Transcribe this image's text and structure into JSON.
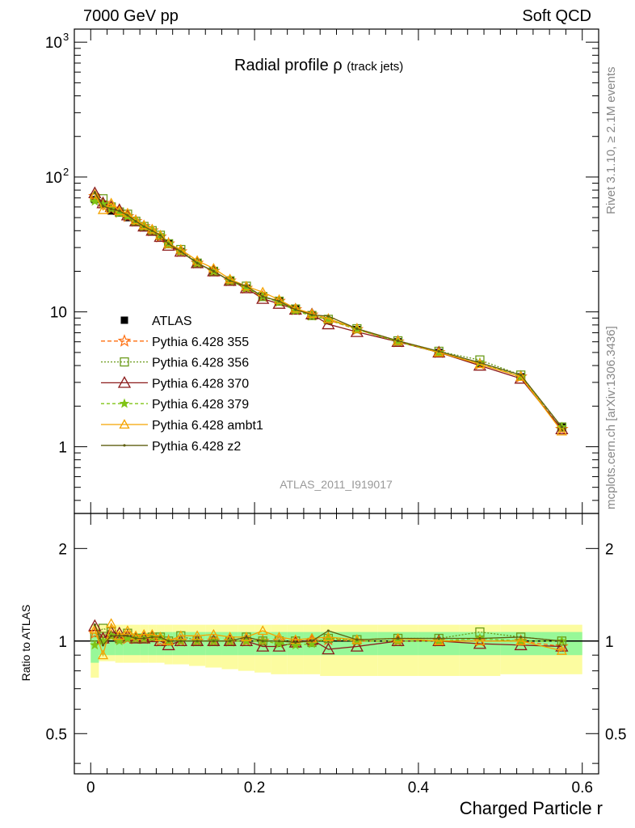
{
  "header": {
    "left": "7000 GeV pp",
    "right": "Soft QCD"
  },
  "side_labels": {
    "rivet": "Rivet 3.1.10, ≥ 2.1M events",
    "mcplots": "mcplots.cern.ch [arXiv:1306.3436]"
  },
  "colors": {
    "atlas": "#000000",
    "p355": "#ff6f0f",
    "p356": "#6b9b1b",
    "p370": "#8b1a1a",
    "p379": "#80c416",
    "ambt1": "#f5a300",
    "z2": "#5f5f10",
    "band_stat": "#98f898",
    "band_tot": "#fcfca0"
  },
  "chart_data": [
    {
      "type": "line",
      "panel": "main",
      "title_main": "Radial profile",
      "title_symbol": "ρ",
      "title_sub": "(track jets)",
      "watermark": "ATLAS_2011_I919017",
      "y_scale": "log",
      "ylim": [
        0.32,
        1250
      ],
      "xlim": [
        -0.02,
        0.62
      ],
      "y_tick_labels": [
        "1",
        "10",
        "10",
        "10"
      ],
      "y_tick_sup": [
        "",
        "",
        "2",
        "3"
      ],
      "legend_position": "left-middle",
      "x": [
        0.005,
        0.015,
        0.025,
        0.035,
        0.045,
        0.055,
        0.065,
        0.075,
        0.085,
        0.095,
        0.11,
        0.13,
        0.15,
        0.17,
        0.19,
        0.21,
        0.23,
        0.25,
        0.27,
        0.29,
        0.325,
        0.375,
        0.425,
        0.475,
        0.525,
        0.575
      ],
      "series": [
        {
          "name": "ATLAS",
          "style": "atlas",
          "values": [
            68,
            63,
            56,
            54,
            50,
            46,
            42,
            39,
            36,
            32,
            28,
            23,
            20,
            17,
            15,
            13,
            12,
            10.5,
            9.5,
            8.6,
            7.4,
            6.0,
            5.0,
            4.1,
            3.3,
            1.4
          ]
        },
        {
          "name": "Pythia 6.428 355",
          "style": "p355",
          "values": [
            72,
            64,
            58,
            55,
            51,
            47,
            43,
            40,
            36,
            32,
            28,
            23,
            20,
            17,
            15,
            13,
            12,
            10.4,
            9.5,
            8.7,
            7.4,
            6.0,
            5.0,
            4.1,
            3.3,
            1.35
          ]
        },
        {
          "name": "Pythia 6.428 356",
          "style": "p356",
          "values": [
            70,
            69,
            60,
            55,
            53,
            47,
            43,
            40,
            37,
            32,
            29,
            23,
            20,
            17,
            15.5,
            13,
            12,
            10.5,
            9.4,
            8.8,
            7.5,
            6.1,
            5.1,
            4.4,
            3.4,
            1.4
          ]
        },
        {
          "name": "Pythia 6.428 370",
          "style": "p370",
          "values": [
            76,
            64,
            60,
            57,
            52,
            47,
            43,
            40,
            36,
            31,
            28,
            23,
            20,
            17,
            15,
            12.5,
            11.5,
            10.4,
            9.6,
            8.1,
            7.1,
            6.0,
            5.0,
            4.0,
            3.2,
            1.35
          ]
        },
        {
          "name": "Pythia 6.428 379",
          "style": "p379",
          "values": [
            66,
            63,
            58,
            54,
            51,
            47,
            43,
            40,
            37,
            32,
            28,
            23,
            20,
            17,
            15,
            13,
            11.8,
            10.2,
            9.3,
            8.8,
            7.4,
            6.0,
            5.0,
            4.2,
            3.3,
            1.4
          ]
        },
        {
          "name": "Pythia 6.428 ambt1",
          "style": "ambt1",
          "values": [
            74,
            57,
            64,
            56,
            54,
            48,
            44,
            41,
            37,
            32,
            29,
            24,
            21,
            17.5,
            15.5,
            14,
            12.3,
            10.6,
            9.7,
            8.9,
            7.5,
            6.1,
            5.0,
            4.1,
            3.3,
            1.3
          ]
        },
        {
          "name": "Pythia 6.428 z2",
          "style": "z2",
          "values": [
            77,
            61,
            58,
            56,
            52,
            47,
            43,
            40,
            37,
            32,
            28,
            23,
            20,
            17,
            15.5,
            13,
            12,
            10.4,
            9.5,
            9.3,
            7.5,
            6.1,
            5.1,
            4.2,
            3.4,
            1.4
          ]
        }
      ]
    },
    {
      "type": "line",
      "panel": "ratio",
      "ylabel": "Ratio to ATLAS",
      "xlabel": "Charged Particle r",
      "y_scale": "log",
      "ylim": [
        0.37,
        2.6
      ],
      "xlim": [
        -0.02,
        0.62
      ],
      "y_tick_values": [
        0.5,
        1,
        2
      ],
      "y_tick_labels": [
        "0.5",
        "1",
        "2"
      ],
      "x_tick_values": [
        0,
        0.2,
        0.4,
        0.6
      ],
      "x_tick_labels": [
        "0",
        "0.2",
        "0.4",
        "0.6"
      ],
      "x": [
        0.005,
        0.015,
        0.025,
        0.035,
        0.045,
        0.055,
        0.065,
        0.075,
        0.085,
        0.095,
        0.11,
        0.13,
        0.15,
        0.17,
        0.19,
        0.21,
        0.23,
        0.25,
        0.27,
        0.29,
        0.325,
        0.375,
        0.425,
        0.475,
        0.525,
        0.575
      ],
      "bin_edges": [
        0,
        0.01,
        0.02,
        0.03,
        0.04,
        0.05,
        0.06,
        0.07,
        0.08,
        0.09,
        0.1,
        0.12,
        0.14,
        0.16,
        0.18,
        0.2,
        0.22,
        0.24,
        0.26,
        0.28,
        0.3,
        0.35,
        0.4,
        0.45,
        0.5,
        0.55,
        0.6
      ],
      "band_stat": {
        "lo": [
          0.85,
          0.9,
          0.9,
          0.9,
          0.9,
          0.9,
          0.9,
          0.9,
          0.9,
          0.9,
          0.9,
          0.9,
          0.9,
          0.9,
          0.9,
          0.9,
          0.9,
          0.9,
          0.9,
          0.9,
          0.9,
          0.9,
          0.9,
          0.9,
          0.9,
          0.9
        ],
        "hi": [
          1.06,
          1.06,
          1.06,
          1.06,
          1.06,
          1.06,
          1.06,
          1.06,
          1.07,
          1.07,
          1.07,
          1.07,
          1.07,
          1.07,
          1.07,
          1.07,
          1.07,
          1.07,
          1.07,
          1.07,
          1.07,
          1.07,
          1.07,
          1.07,
          1.07,
          1.07
        ]
      },
      "band_tot": {
        "lo": [
          0.76,
          0.86,
          0.86,
          0.85,
          0.85,
          0.85,
          0.85,
          0.85,
          0.85,
          0.84,
          0.84,
          0.83,
          0.82,
          0.81,
          0.8,
          0.79,
          0.78,
          0.78,
          0.78,
          0.77,
          0.77,
          0.77,
          0.77,
          0.77,
          0.78,
          0.78
        ],
        "hi": [
          1.13,
          1.13,
          1.13,
          1.13,
          1.13,
          1.13,
          1.13,
          1.13,
          1.13,
          1.13,
          1.13,
          1.13,
          1.13,
          1.13,
          1.13,
          1.13,
          1.13,
          1.13,
          1.13,
          1.13,
          1.13,
          1.13,
          1.13,
          1.13,
          1.13,
          1.13
        ]
      },
      "series": [
        {
          "name": "Pythia 6.428 355",
          "style": "p355",
          "values": [
            1.06,
            1.02,
            1.04,
            1.02,
            1.02,
            1.02,
            1.02,
            1.03,
            1.0,
            1.0,
            1.0,
            1.0,
            1.0,
            1.0,
            1.0,
            1.0,
            1.0,
            0.99,
            1.0,
            1.01,
            1.0,
            1.0,
            1.0,
            1.0,
            1.0,
            0.96
          ]
        },
        {
          "name": "Pythia 6.428 356",
          "style": "p356",
          "values": [
            1.03,
            1.1,
            1.07,
            1.02,
            1.06,
            1.02,
            1.02,
            1.03,
            1.03,
            1.0,
            1.04,
            1.0,
            1.0,
            1.0,
            1.03,
            1.0,
            1.0,
            1.0,
            0.99,
            1.02,
            1.01,
            1.02,
            1.02,
            1.07,
            1.03,
            1.0
          ]
        },
        {
          "name": "Pythia 6.428 370",
          "style": "p370",
          "values": [
            1.12,
            1.02,
            1.07,
            1.06,
            1.04,
            1.02,
            1.02,
            1.03,
            1.0,
            0.97,
            1.0,
            1.0,
            1.0,
            1.0,
            1.0,
            0.96,
            0.96,
            0.99,
            1.01,
            0.94,
            0.96,
            1.0,
            1.0,
            0.98,
            0.97,
            0.96
          ]
        },
        {
          "name": "Pythia 6.428 379",
          "style": "p379",
          "values": [
            0.97,
            1.0,
            1.04,
            1.0,
            1.02,
            1.02,
            1.02,
            1.03,
            1.03,
            1.0,
            1.0,
            1.0,
            1.0,
            1.0,
            1.0,
            1.0,
            0.98,
            0.97,
            0.98,
            1.02,
            1.0,
            1.0,
            1.0,
            1.02,
            1.0,
            1.0
          ]
        },
        {
          "name": "Pythia 6.428 ambt1",
          "style": "ambt1",
          "values": [
            1.09,
            0.9,
            1.14,
            1.04,
            1.08,
            1.04,
            1.05,
            1.05,
            1.03,
            1.0,
            1.04,
            1.04,
            1.05,
            1.03,
            1.03,
            1.08,
            1.03,
            1.01,
            1.02,
            1.03,
            1.01,
            1.02,
            1.0,
            1.0,
            1.0,
            0.93
          ]
        },
        {
          "name": "Pythia 6.428 z2",
          "style": "z2",
          "values": [
            1.13,
            0.97,
            1.04,
            1.04,
            1.04,
            1.02,
            1.02,
            1.03,
            1.03,
            1.0,
            1.0,
            1.0,
            1.0,
            1.0,
            1.03,
            1.0,
            1.0,
            0.99,
            1.0,
            1.08,
            1.01,
            1.02,
            1.02,
            1.02,
            1.03,
            1.0
          ]
        }
      ]
    }
  ]
}
